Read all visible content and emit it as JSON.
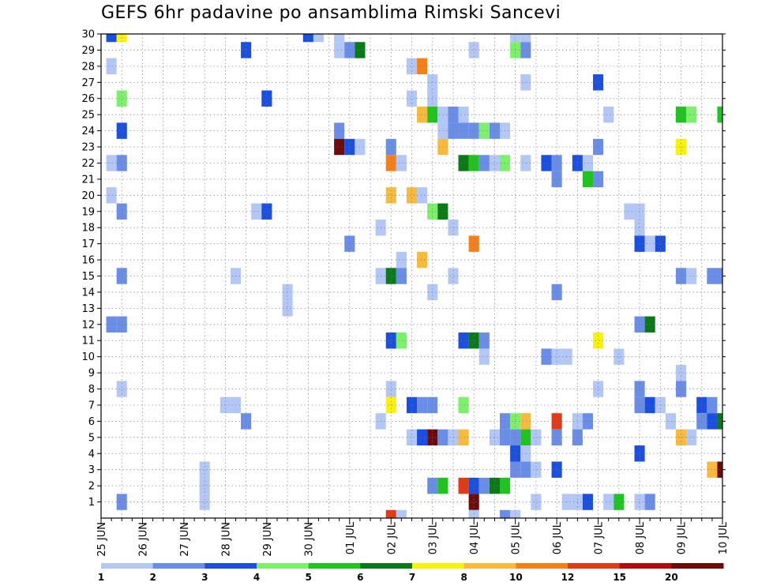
{
  "chart_data": {
    "type": "heatmap",
    "title": "GEFS 6hr padavine po ansamblima Rimski Sancevi",
    "xlabel": "",
    "ylabel": "",
    "x_tick_labels": [
      "25 JUN",
      "26 JUN",
      "27 JUN",
      "28 JUN",
      "29 JUN",
      "30 JUN",
      "01 JUL",
      "02 JUL",
      "03 JUL",
      "04 JUL",
      "05 JUL",
      "06 JUL",
      "07 JUL",
      "08 JUL",
      "09 JUL",
      "10 JUL"
    ],
    "xlim_steps": [
      0,
      60
    ],
    "steps_per_day": 4,
    "ylim": [
      0,
      30
    ],
    "y_tick_labels": [
      "1",
      "2",
      "3",
      "4",
      "5",
      "6",
      "7",
      "8",
      "9",
      "10",
      "11",
      "12",
      "13",
      "14",
      "15",
      "16",
      "17",
      "18",
      "19",
      "20",
      "21",
      "22",
      "23",
      "24",
      "25",
      "26",
      "27",
      "28",
      "29",
      "30"
    ],
    "grid": "dotted",
    "colorbar": {
      "placement": "bottom",
      "labels": [
        "1",
        "2",
        "3",
        "4",
        "5",
        "6",
        "7",
        "8",
        "10",
        "12",
        "15",
        "20"
      ],
      "colors": [
        "#b3c7f7",
        "#6a8ee8",
        "#1a4fe0",
        "#7cf06a",
        "#1fc41f",
        "#0a7a18",
        "#f8f20a",
        "#f8ba3c",
        "#f57f18",
        "#e23a12",
        "#b40c0c",
        "#6e0a0a"
      ]
    },
    "cells": [
      {
        "member": 30,
        "step": 1,
        "class": 2
      },
      {
        "member": 30,
        "step": 2,
        "class": 6
      },
      {
        "member": 30,
        "step": 20,
        "class": 2
      },
      {
        "member": 30,
        "step": 21,
        "class": 0
      },
      {
        "member": 30,
        "step": 23,
        "class": 0
      },
      {
        "member": 30,
        "step": 40,
        "class": 0
      },
      {
        "member": 30,
        "step": 41,
        "class": 0
      },
      {
        "member": 29,
        "step": 14,
        "class": 2
      },
      {
        "member": 29,
        "step": 23,
        "class": 0
      },
      {
        "member": 29,
        "step": 24,
        "class": 1
      },
      {
        "member": 29,
        "step": 25,
        "class": 5
      },
      {
        "member": 29,
        "step": 36,
        "class": 0
      },
      {
        "member": 29,
        "step": 40,
        "class": 3
      },
      {
        "member": 29,
        "step": 41,
        "class": 1
      },
      {
        "member": 28,
        "step": 1,
        "class": 0
      },
      {
        "member": 28,
        "step": 30,
        "class": 0
      },
      {
        "member": 28,
        "step": 31,
        "class": 8
      },
      {
        "member": 27,
        "step": 32,
        "class": 0
      },
      {
        "member": 27,
        "step": 41,
        "class": 0
      },
      {
        "member": 27,
        "step": 48,
        "class": 2
      },
      {
        "member": 26,
        "step": 2,
        "class": 3
      },
      {
        "member": 26,
        "step": 16,
        "class": 2
      },
      {
        "member": 26,
        "step": 30,
        "class": 0
      },
      {
        "member": 26,
        "step": 32,
        "class": 0
      },
      {
        "member": 25,
        "step": 31,
        "class": 7
      },
      {
        "member": 25,
        "step": 32,
        "class": 4
      },
      {
        "member": 25,
        "step": 33,
        "class": 0
      },
      {
        "member": 25,
        "step": 34,
        "class": 1
      },
      {
        "member": 25,
        "step": 35,
        "class": 0
      },
      {
        "member": 25,
        "step": 49,
        "class": 0
      },
      {
        "member": 25,
        "step": 56,
        "class": 4
      },
      {
        "member": 25,
        "step": 57,
        "class": 3
      },
      {
        "member": 25,
        "step": 60,
        "class": 4
      },
      {
        "member": 24,
        "step": 2,
        "class": 2
      },
      {
        "member": 24,
        "step": 23,
        "class": 1
      },
      {
        "member": 24,
        "step": 33,
        "class": 0
      },
      {
        "member": 24,
        "step": 34,
        "class": 1
      },
      {
        "member": 24,
        "step": 35,
        "class": 1
      },
      {
        "member": 24,
        "step": 36,
        "class": 1
      },
      {
        "member": 24,
        "step": 37,
        "class": 3
      },
      {
        "member": 24,
        "step": 38,
        "class": 1
      },
      {
        "member": 24,
        "step": 39,
        "class": 0
      },
      {
        "member": 23,
        "step": 23,
        "class": 11
      },
      {
        "member": 23,
        "step": 24,
        "class": 2
      },
      {
        "member": 23,
        "step": 25,
        "class": 0
      },
      {
        "member": 23,
        "step": 28,
        "class": 1
      },
      {
        "member": 23,
        "step": 33,
        "class": 7
      },
      {
        "member": 23,
        "step": 48,
        "class": 1
      },
      {
        "member": 23,
        "step": 56,
        "class": 6
      },
      {
        "member": 22,
        "step": 1,
        "class": 0
      },
      {
        "member": 22,
        "step": 2,
        "class": 1
      },
      {
        "member": 22,
        "step": 28,
        "class": 8
      },
      {
        "member": 22,
        "step": 29,
        "class": 0
      },
      {
        "member": 22,
        "step": 35,
        "class": 5
      },
      {
        "member": 22,
        "step": 36,
        "class": 4
      },
      {
        "member": 22,
        "step": 37,
        "class": 1
      },
      {
        "member": 22,
        "step": 38,
        "class": 0
      },
      {
        "member": 22,
        "step": 39,
        "class": 3
      },
      {
        "member": 22,
        "step": 41,
        "class": 0
      },
      {
        "member": 22,
        "step": 43,
        "class": 2
      },
      {
        "member": 22,
        "step": 44,
        "class": 1
      },
      {
        "member": 22,
        "step": 46,
        "class": 2
      },
      {
        "member": 22,
        "step": 47,
        "class": 0
      },
      {
        "member": 21,
        "step": 44,
        "class": 1
      },
      {
        "member": 21,
        "step": 47,
        "class": 4
      },
      {
        "member": 21,
        "step": 48,
        "class": 1
      },
      {
        "member": 20,
        "step": 1,
        "class": 0
      },
      {
        "member": 20,
        "step": 28,
        "class": 7
      },
      {
        "member": 20,
        "step": 30,
        "class": 7
      },
      {
        "member": 20,
        "step": 31,
        "class": 0
      },
      {
        "member": 19,
        "step": 2,
        "class": 1
      },
      {
        "member": 19,
        "step": 15,
        "class": 0
      },
      {
        "member": 19,
        "step": 16,
        "class": 2
      },
      {
        "member": 19,
        "step": 32,
        "class": 3
      },
      {
        "member": 19,
        "step": 33,
        "class": 5
      },
      {
        "member": 19,
        "step": 51,
        "class": 0
      },
      {
        "member": 19,
        "step": 52,
        "class": 0
      },
      {
        "member": 18,
        "step": 27,
        "class": 0
      },
      {
        "member": 18,
        "step": 34,
        "class": 0
      },
      {
        "member": 18,
        "step": 52,
        "class": 0
      },
      {
        "member": 17,
        "step": 24,
        "class": 1
      },
      {
        "member": 17,
        "step": 36,
        "class": 8
      },
      {
        "member": 17,
        "step": 52,
        "class": 2
      },
      {
        "member": 17,
        "step": 53,
        "class": 0
      },
      {
        "member": 17,
        "step": 54,
        "class": 2
      },
      {
        "member": 16,
        "step": 29,
        "class": 0
      },
      {
        "member": 16,
        "step": 31,
        "class": 7
      },
      {
        "member": 15,
        "step": 2,
        "class": 1
      },
      {
        "member": 15,
        "step": 13,
        "class": 0
      },
      {
        "member": 15,
        "step": 27,
        "class": 0
      },
      {
        "member": 15,
        "step": 28,
        "class": 5
      },
      {
        "member": 15,
        "step": 29,
        "class": 1
      },
      {
        "member": 15,
        "step": 34,
        "class": 0
      },
      {
        "member": 15,
        "step": 56,
        "class": 1
      },
      {
        "member": 15,
        "step": 57,
        "class": 0
      },
      {
        "member": 15,
        "step": 59,
        "class": 1
      },
      {
        "member": 15,
        "step": 60,
        "class": 1
      },
      {
        "member": 14,
        "step": 18,
        "class": 0
      },
      {
        "member": 14,
        "step": 32,
        "class": 0
      },
      {
        "member": 14,
        "step": 44,
        "class": 1
      },
      {
        "member": 13,
        "step": 18,
        "class": 0
      },
      {
        "member": 12,
        "step": 1,
        "class": 1
      },
      {
        "member": 12,
        "step": 2,
        "class": 1
      },
      {
        "member": 12,
        "step": 52,
        "class": 1
      },
      {
        "member": 12,
        "step": 53,
        "class": 5
      },
      {
        "member": 11,
        "step": 28,
        "class": 2
      },
      {
        "member": 11,
        "step": 29,
        "class": 3
      },
      {
        "member": 11,
        "step": 35,
        "class": 2
      },
      {
        "member": 11,
        "step": 36,
        "class": 5
      },
      {
        "member": 11,
        "step": 37,
        "class": 1
      },
      {
        "member": 11,
        "step": 48,
        "class": 6
      },
      {
        "member": 10,
        "step": 37,
        "class": 0
      },
      {
        "member": 10,
        "step": 43,
        "class": 1
      },
      {
        "member": 10,
        "step": 44,
        "class": 0
      },
      {
        "member": 10,
        "step": 45,
        "class": 0
      },
      {
        "member": 10,
        "step": 50,
        "class": 0
      },
      {
        "member": 9,
        "step": 56,
        "class": 0
      },
      {
        "member": 8,
        "step": 2,
        "class": 0
      },
      {
        "member": 8,
        "step": 28,
        "class": 0
      },
      {
        "member": 8,
        "step": 48,
        "class": 0
      },
      {
        "member": 8,
        "step": 52,
        "class": 1
      },
      {
        "member": 8,
        "step": 56,
        "class": 1
      },
      {
        "member": 7,
        "step": 12,
        "class": 0
      },
      {
        "member": 7,
        "step": 13,
        "class": 0
      },
      {
        "member": 7,
        "step": 28,
        "class": 6
      },
      {
        "member": 7,
        "step": 30,
        "class": 2
      },
      {
        "member": 7,
        "step": 31,
        "class": 1
      },
      {
        "member": 7,
        "step": 32,
        "class": 1
      },
      {
        "member": 7,
        "step": 35,
        "class": 3
      },
      {
        "member": 7,
        "step": 52,
        "class": 1
      },
      {
        "member": 7,
        "step": 53,
        "class": 2
      },
      {
        "member": 7,
        "step": 54,
        "class": 0
      },
      {
        "member": 7,
        "step": 58,
        "class": 2
      },
      {
        "member": 7,
        "step": 59,
        "class": 1
      },
      {
        "member": 6,
        "step": 14,
        "class": 1
      },
      {
        "member": 6,
        "step": 27,
        "class": 0
      },
      {
        "member": 6,
        "step": 39,
        "class": 1
      },
      {
        "member": 6,
        "step": 40,
        "class": 3
      },
      {
        "member": 6,
        "step": 41,
        "class": 7
      },
      {
        "member": 6,
        "step": 44,
        "class": 9
      },
      {
        "member": 6,
        "step": 46,
        "class": 0
      },
      {
        "member": 6,
        "step": 47,
        "class": 1
      },
      {
        "member": 6,
        "step": 55,
        "class": 0
      },
      {
        "member": 6,
        "step": 58,
        "class": 1
      },
      {
        "member": 6,
        "step": 59,
        "class": 2
      },
      {
        "member": 6,
        "step": 60,
        "class": 5
      },
      {
        "member": 5,
        "step": 30,
        "class": 0
      },
      {
        "member": 5,
        "step": 31,
        "class": 2
      },
      {
        "member": 5,
        "step": 32,
        "class": 11
      },
      {
        "member": 5,
        "step": 33,
        "class": 1
      },
      {
        "member": 5,
        "step": 34,
        "class": 0
      },
      {
        "member": 5,
        "step": 35,
        "class": 7
      },
      {
        "member": 5,
        "step": 38,
        "class": 0
      },
      {
        "member": 5,
        "step": 39,
        "class": 1
      },
      {
        "member": 5,
        "step": 40,
        "class": 1
      },
      {
        "member": 5,
        "step": 41,
        "class": 4
      },
      {
        "member": 5,
        "step": 42,
        "class": 0
      },
      {
        "member": 5,
        "step": 44,
        "class": 1
      },
      {
        "member": 5,
        "step": 46,
        "class": 1
      },
      {
        "member": 5,
        "step": 56,
        "class": 7
      },
      {
        "member": 5,
        "step": 57,
        "class": 0
      },
      {
        "member": 4,
        "step": 40,
        "class": 2
      },
      {
        "member": 4,
        "step": 41,
        "class": 0
      },
      {
        "member": 4,
        "step": 52,
        "class": 2
      },
      {
        "member": 3,
        "step": 10,
        "class": 0
      },
      {
        "member": 3,
        "step": 40,
        "class": 1
      },
      {
        "member": 3,
        "step": 41,
        "class": 1
      },
      {
        "member": 3,
        "step": 42,
        "class": 0
      },
      {
        "member": 3,
        "step": 44,
        "class": 2
      },
      {
        "member": 3,
        "step": 59,
        "class": 7
      },
      {
        "member": 3,
        "step": 60,
        "class": 11
      },
      {
        "member": 2,
        "step": 10,
        "class": 0
      },
      {
        "member": 2,
        "step": 32,
        "class": 1
      },
      {
        "member": 2,
        "step": 33,
        "class": 4
      },
      {
        "member": 2,
        "step": 35,
        "class": 9
      },
      {
        "member": 2,
        "step": 36,
        "class": 2
      },
      {
        "member": 2,
        "step": 37,
        "class": 1
      },
      {
        "member": 2,
        "step": 38,
        "class": 5
      },
      {
        "member": 2,
        "step": 39,
        "class": 4
      },
      {
        "member": 1,
        "step": 2,
        "class": 1
      },
      {
        "member": 1,
        "step": 10,
        "class": 0
      },
      {
        "member": 1,
        "step": 36,
        "class": 11
      },
      {
        "member": 1,
        "step": 42,
        "class": 0
      },
      {
        "member": 1,
        "step": 45,
        "class": 0
      },
      {
        "member": 1,
        "step": 46,
        "class": 0
      },
      {
        "member": 1,
        "step": 47,
        "class": 2
      },
      {
        "member": 1,
        "step": 49,
        "class": 0
      },
      {
        "member": 1,
        "step": 50,
        "class": 4
      },
      {
        "member": 1,
        "step": 52,
        "class": 0
      },
      {
        "member": 1,
        "step": 53,
        "class": 1
      },
      {
        "member": 0,
        "step": 28,
        "class": 9
      },
      {
        "member": 0,
        "step": 29,
        "class": 0
      },
      {
        "member": 0,
        "step": 36,
        "class": 0
      },
      {
        "member": 0,
        "step": 39,
        "class": 1
      },
      {
        "member": 0,
        "step": 40,
        "class": 0
      }
    ]
  }
}
